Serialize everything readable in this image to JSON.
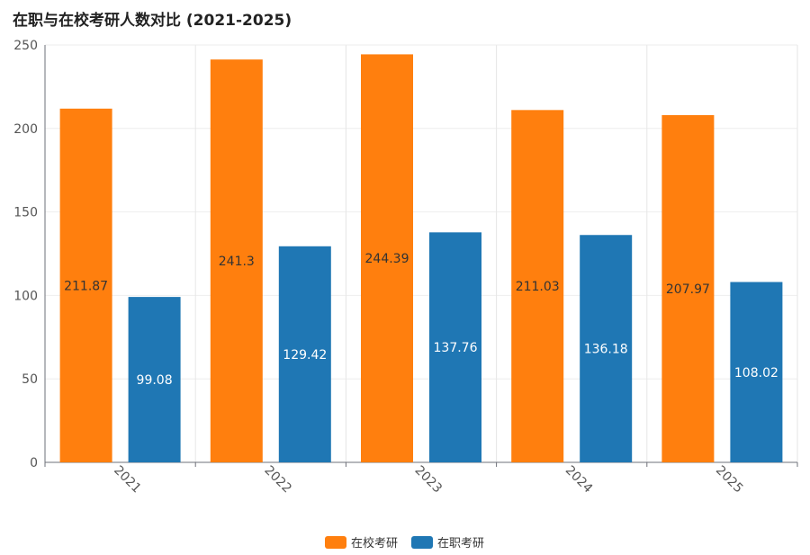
{
  "chart_data": {
    "type": "bar",
    "title": "在职与在校考研人数对比 (2021-2025)",
    "categories": [
      "2021",
      "2022",
      "2023",
      "2024",
      "2025"
    ],
    "series": [
      {
        "name": "在校考研",
        "color": "#ff7f0e",
        "values": [
          211.87,
          241.3,
          244.39,
          211.03,
          207.97
        ]
      },
      {
        "name": "在职考研",
        "color": "#1f77b4",
        "values": [
          99.08,
          129.42,
          137.76,
          136.18,
          108.02
        ]
      }
    ],
    "y_ticks": [
      0,
      50,
      100,
      150,
      200,
      250
    ],
    "ylim": [
      0,
      250
    ],
    "grid": true,
    "legend_position": "bottom-center"
  }
}
